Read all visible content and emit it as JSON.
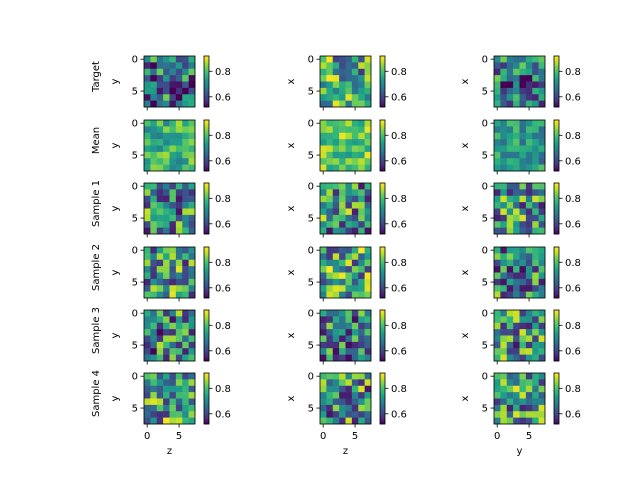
{
  "chart_data": {
    "type": "heatmap",
    "grid": {
      "rows": 6,
      "cols": 3
    },
    "row_labels": [
      "Target",
      "Mean",
      "Sample 1",
      "Sample 2",
      "Sample 3",
      "Sample 4"
    ],
    "col_xlabels": [
      "z",
      "z",
      "y"
    ],
    "col_ylabels": [
      "y",
      "x",
      "x"
    ],
    "image_shape": [
      8,
      8
    ],
    "x_ticks": [
      0,
      5
    ],
    "y_ticks": [
      0,
      5
    ],
    "colorbar": {
      "ticks": [
        0.6,
        0.8
      ],
      "tick_labels": [
        "0.6",
        "0.8"
      ],
      "range": [
        0.52,
        0.92
      ],
      "colormap": "viridis"
    },
    "value_range": [
      0.52,
      0.92
    ],
    "note_values": "cell values per panel (8x8) estimated from colours"
  }
}
